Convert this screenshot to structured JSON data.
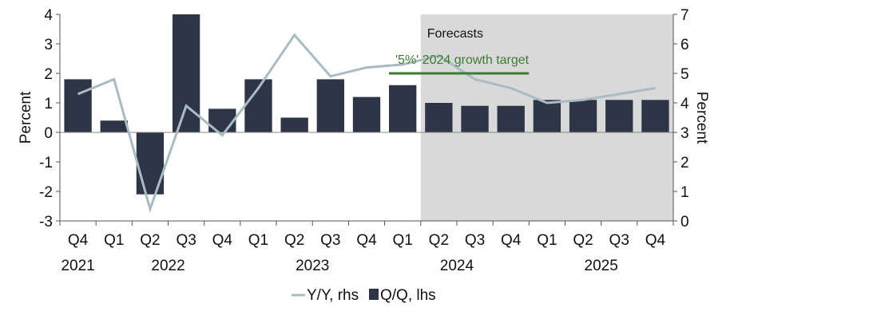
{
  "chart_data": {
    "type": "bar",
    "categories": [
      "Q4",
      "Q1",
      "Q2",
      "Q3",
      "Q4",
      "Q1",
      "Q2",
      "Q3",
      "Q4",
      "Q1",
      "Q2",
      "Q3",
      "Q4",
      "Q1",
      "Q2",
      "Q3",
      "Q4"
    ],
    "year_groups": [
      {
        "label": "2021",
        "start": 0,
        "end": 0
      },
      {
        "label": "2022",
        "start": 1,
        "end": 4
      },
      {
        "label": "2023",
        "start": 5,
        "end": 8
      },
      {
        "label": "2024",
        "start": 9,
        "end": 12
      },
      {
        "label": "2025",
        "start": 13,
        "end": 16
      }
    ],
    "series": [
      {
        "name": "Q/Q, lhs",
        "type": "bar",
        "axis": "left",
        "color": "#2e3546",
        "values": [
          1.8,
          0.4,
          -2.1,
          4.0,
          0.8,
          1.8,
          0.5,
          1.8,
          1.2,
          1.6,
          1.0,
          0.9,
          0.9,
          1.1,
          1.1,
          1.1,
          1.1
        ]
      },
      {
        "name": "Y/Y, rhs",
        "type": "line",
        "axis": "right",
        "color": "#a9bcc4",
        "values": [
          4.3,
          4.8,
          0.4,
          3.9,
          2.9,
          4.5,
          6.3,
          4.9,
          5.2,
          5.3,
          5.6,
          4.8,
          4.5,
          4.0,
          4.1,
          4.3,
          4.5
        ]
      }
    ],
    "y_left": {
      "label": "Percent",
      "min": -3,
      "max": 4,
      "ticks": [
        -3,
        -2,
        -1,
        0,
        1,
        2,
        3,
        4
      ]
    },
    "y_right": {
      "label": "Percent",
      "min": 0,
      "max": 7,
      "ticks": [
        0,
        1,
        2,
        3,
        4,
        5,
        6,
        7
      ]
    },
    "forecast_region": {
      "label": "Forecasts",
      "from_index": 10,
      "color": "#d9d9d9"
    },
    "target_line": {
      "label": "'5%' 2024 growth target",
      "value_rhs": 5.0,
      "from_index": 9,
      "to_index": 12,
      "color": "#3a7d2f"
    },
    "grid": false,
    "legend_position": "bottom-center"
  }
}
